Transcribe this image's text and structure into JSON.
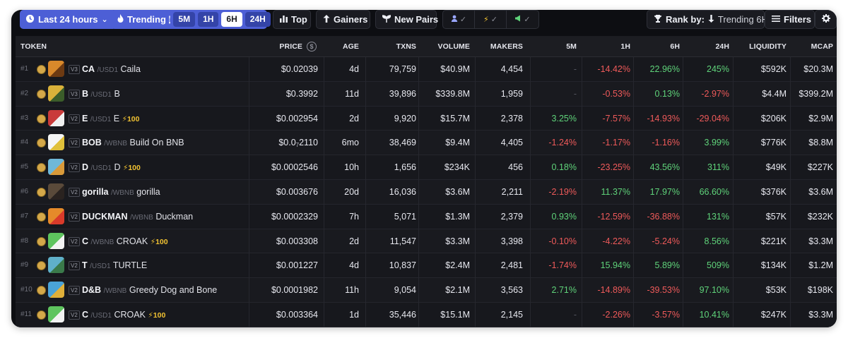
{
  "toolbar": {
    "timeframe_label": "Last 24 hours",
    "trending_label": "Trending",
    "trending_info": "i",
    "periods": [
      "5M",
      "1H",
      "6H",
      "24H"
    ],
    "active_period": "6H",
    "top_label": "Top",
    "gainers_label": "Gainers",
    "new_pairs_label": "New Pairs",
    "rank_by_label": "Rank by:",
    "rank_by_value": "Trending 6H",
    "filters_label": "Filters"
  },
  "table": {
    "headers": [
      "TOKEN",
      "PRICE",
      "AGE",
      "TXNS",
      "VOLUME",
      "MAKERS",
      "5M",
      "1H",
      "6H",
      "24H",
      "LIQUIDITY",
      "MCAP"
    ],
    "rows": [
      {
        "rank": "#1",
        "ver": "V3",
        "symbol": "CA",
        "quote": "/USD1",
        "name": "Caila",
        "boost": "",
        "price": "$0.02039",
        "age": "4d",
        "txns": "79,759",
        "volume": "$40.9M",
        "makers": "4,454",
        "m5": "-",
        "h1": "-14.42%",
        "h6": "22.96%",
        "h24": "245%",
        "liquidity": "$592K",
        "mcap": "$20.3M",
        "av": [
          "#d9892b",
          "#6d3a12"
        ]
      },
      {
        "rank": "#2",
        "ver": "V3",
        "symbol": "B",
        "quote": "/USD1",
        "name": "B",
        "boost": "",
        "price": "$0.3992",
        "age": "11d",
        "txns": "39,896",
        "volume": "$339.8M",
        "makers": "1,959",
        "m5": "-",
        "h1": "-0.53%",
        "h6": "0.13%",
        "h24": "-2.97%",
        "liquidity": "$4.4M",
        "mcap": "$399.2M",
        "av": [
          "#d9b13a",
          "#3b5d2a"
        ]
      },
      {
        "rank": "#3",
        "ver": "V2",
        "symbol": "E",
        "quote": "/USD1",
        "name": "E",
        "boost": "⚡100",
        "price": "$0.002954",
        "age": "2d",
        "txns": "9,920",
        "volume": "$15.7M",
        "makers": "2,378",
        "m5": "3.25%",
        "h1": "-7.57%",
        "h6": "-14.93%",
        "h24": "-29.04%",
        "liquidity": "$206K",
        "mcap": "$2.9M",
        "av": [
          "#c93b3b",
          "#f0f0f0"
        ]
      },
      {
        "rank": "#4",
        "ver": "V2",
        "symbol": "BOB",
        "quote": "/WBNB",
        "name": "Build On BNB",
        "boost": "",
        "price_main": "$0.0",
        "price_sub": "7",
        "price_tail": "2110",
        "price": "",
        "age": "6mo",
        "txns": "38,469",
        "volume": "$9.4M",
        "makers": "4,405",
        "m5": "-1.24%",
        "h1": "-1.17%",
        "h6": "-1.16%",
        "h24": "3.99%",
        "liquidity": "$776K",
        "mcap": "$8.8M",
        "av": [
          "#f5f5f5",
          "#e0c03a"
        ]
      },
      {
        "rank": "#5",
        "ver": "V2",
        "symbol": "D",
        "quote": "/USD1",
        "name": "D",
        "boost": "⚡100",
        "price": "$0.0002546",
        "age": "10h",
        "txns": "1,656",
        "volume": "$234K",
        "makers": "456",
        "m5": "0.18%",
        "h1": "-23.25%",
        "h6": "43.56%",
        "h24": "311%",
        "liquidity": "$49K",
        "mcap": "$227K",
        "av": [
          "#6fb8d8",
          "#d99a3a"
        ]
      },
      {
        "rank": "#6",
        "ver": "V2",
        "symbol": "gorilla",
        "quote": "/WBNB",
        "name": "gorilla",
        "boost": "",
        "price": "$0.003676",
        "age": "20d",
        "txns": "16,036",
        "volume": "$3.6M",
        "makers": "2,211",
        "m5": "-2.19%",
        "h1": "11.37%",
        "h6": "17.97%",
        "h24": "66.60%",
        "liquidity": "$376K",
        "mcap": "$3.6M",
        "av": [
          "#5a4a3a",
          "#2a2320"
        ]
      },
      {
        "rank": "#7",
        "ver": "V2",
        "symbol": "DUCKMAN",
        "quote": "/WBNB",
        "name": "Duckman",
        "boost": "",
        "price": "$0.0002329",
        "age": "7h",
        "txns": "5,071",
        "volume": "$1.3M",
        "makers": "2,379",
        "m5": "0.93%",
        "h1": "-12.59%",
        "h6": "-36.88%",
        "h24": "131%",
        "liquidity": "$57K",
        "mcap": "$232K",
        "av": [
          "#e58a2a",
          "#d93a2a"
        ]
      },
      {
        "rank": "#8",
        "ver": "V2",
        "symbol": "C",
        "quote": "/WBNB",
        "name": "CROAK",
        "boost": "⚡100",
        "price": "$0.003308",
        "age": "2d",
        "txns": "11,547",
        "volume": "$3.3M",
        "makers": "3,398",
        "m5": "-0.10%",
        "h1": "-4.22%",
        "h6": "-5.24%",
        "h24": "8.56%",
        "liquidity": "$221K",
        "mcap": "$3.3M",
        "av": [
          "#5ec45e",
          "#f2f2f2"
        ]
      },
      {
        "rank": "#9",
        "ver": "V2",
        "symbol": "T",
        "quote": "/USD1",
        "name": "TURTLE",
        "boost": "",
        "price": "$0.001227",
        "age": "4d",
        "txns": "10,837",
        "volume": "$2.4M",
        "makers": "2,481",
        "m5": "-1.74%",
        "h1": "15.94%",
        "h6": "5.89%",
        "h24": "509%",
        "liquidity": "$134K",
        "mcap": "$1.2M",
        "av": [
          "#5fb0c9",
          "#3a7a4a"
        ]
      },
      {
        "rank": "#10",
        "ver": "V2",
        "symbol": "D&B",
        "quote": "/WBNB",
        "name": "Greedy Dog and Bone",
        "boost": "",
        "price": "$0.0001982",
        "age": "11h",
        "txns": "9,054",
        "volume": "$2.1M",
        "makers": "3,563",
        "m5": "2.71%",
        "h1": "-14.89%",
        "h6": "-39.53%",
        "h24": "97.10%",
        "liquidity": "$53K",
        "mcap": "$198K",
        "av": [
          "#4aa3d8",
          "#e0b03a"
        ]
      },
      {
        "rank": "#11",
        "ver": "V2",
        "symbol": "C",
        "quote": "/USD1",
        "name": "CROAK",
        "boost": "⚡100",
        "price": "$0.003364",
        "age": "1d",
        "txns": "35,446",
        "volume": "$15.1M",
        "makers": "2,145",
        "m5": "-",
        "h1": "-2.26%",
        "h6": "-3.57%",
        "h24": "10.41%",
        "liquidity": "$247K",
        "mcap": "$3.3M",
        "av": [
          "#5ec45e",
          "#f2f2f2"
        ]
      }
    ]
  }
}
